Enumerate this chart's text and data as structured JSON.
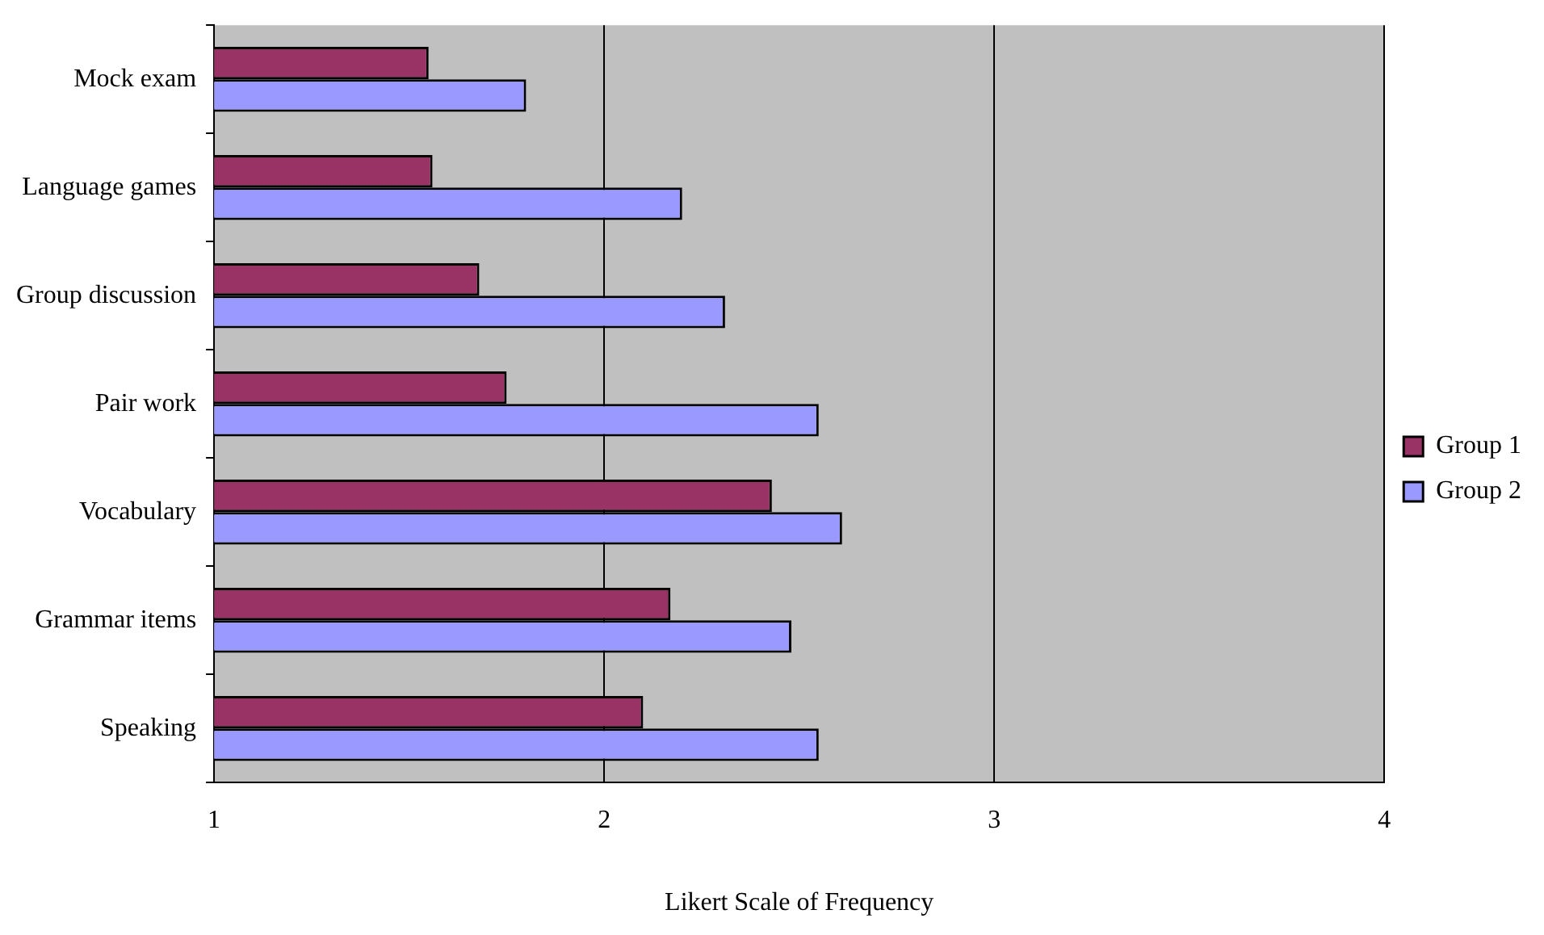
{
  "chart_data": {
    "type": "bar",
    "orientation": "horizontal",
    "xlabel": "Likert Scale of Frequency",
    "categories": [
      "Mock exam",
      "Language games",
      "Group discussion",
      "Pair work",
      "Vocabulary",
      "Grammar items",
      "Speaking"
    ],
    "series": [
      {
        "name": "Group 1",
        "color": "#993366",
        "values": [
          1.55,
          1.56,
          1.68,
          1.75,
          2.43,
          2.17,
          2.1
        ]
      },
      {
        "name": "Group 2",
        "color": "#9999ff",
        "values": [
          1.8,
          2.2,
          2.31,
          2.55,
          2.61,
          2.48,
          2.55
        ]
      }
    ],
    "xlim": [
      1,
      4
    ],
    "xticks": [
      1,
      2,
      3,
      4
    ],
    "grid": "x",
    "legend": "right"
  }
}
